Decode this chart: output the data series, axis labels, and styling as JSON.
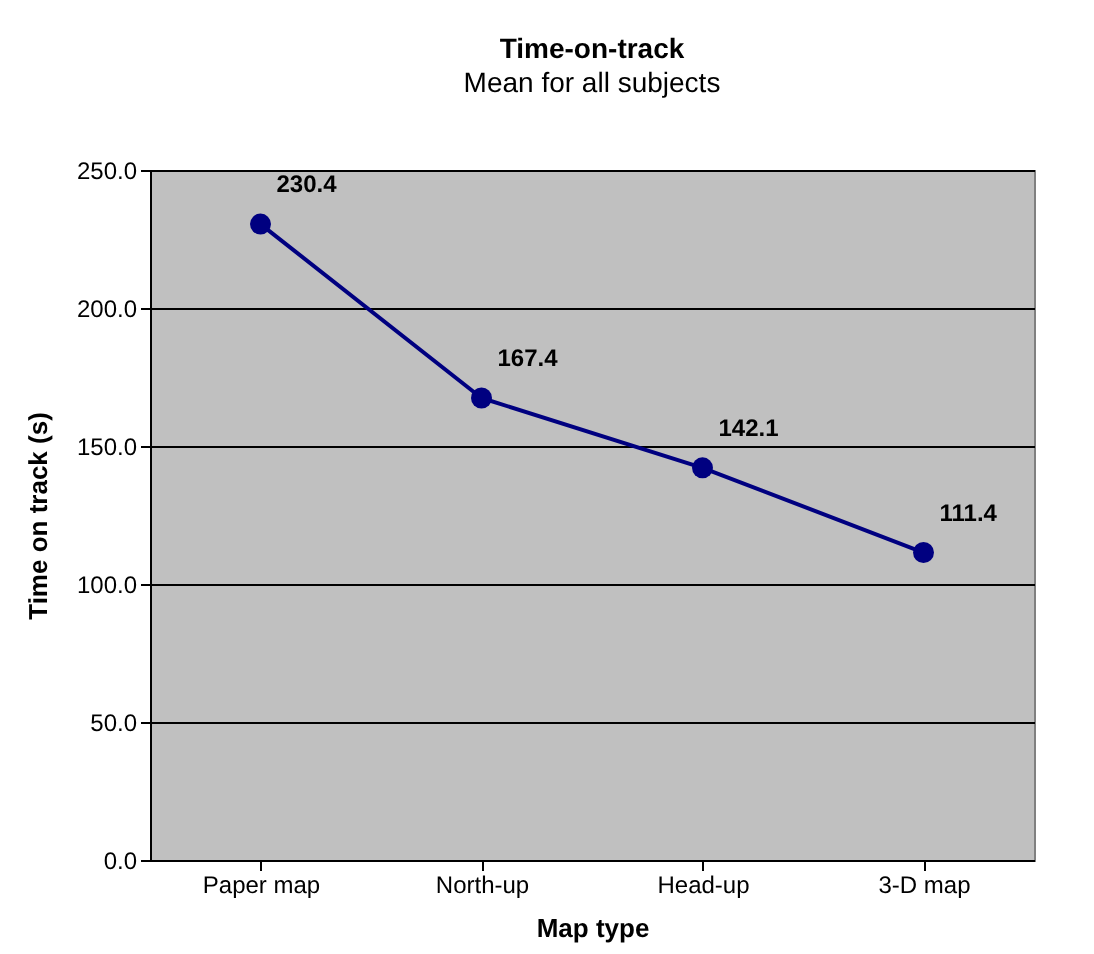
{
  "chart_data": {
    "type": "line",
    "title": "Time-on-track",
    "subtitle": "Mean for all subjects",
    "xlabel": "Map type",
    "ylabel": "Time on track (s)",
    "categories": [
      "Paper map",
      "North-up",
      "Head-up",
      "3-D map"
    ],
    "series": [
      {
        "color": "#000080",
        "values": [
          230.4,
          167.4,
          142.1,
          111.4
        ]
      }
    ],
    "ylim": [
      0,
      250
    ],
    "yticks": [
      {
        "value": 0,
        "label": "0.0"
      },
      {
        "value": 50,
        "label": "50.0"
      },
      {
        "value": 100,
        "label": "100.0"
      },
      {
        "value": 150,
        "label": "150.0"
      },
      {
        "value": 200,
        "label": "200.0"
      },
      {
        "value": 250,
        "label": "250.0"
      }
    ],
    "grid": "y",
    "marker": "circle",
    "line_style": "solid",
    "data_labels": true,
    "legend": false
  }
}
